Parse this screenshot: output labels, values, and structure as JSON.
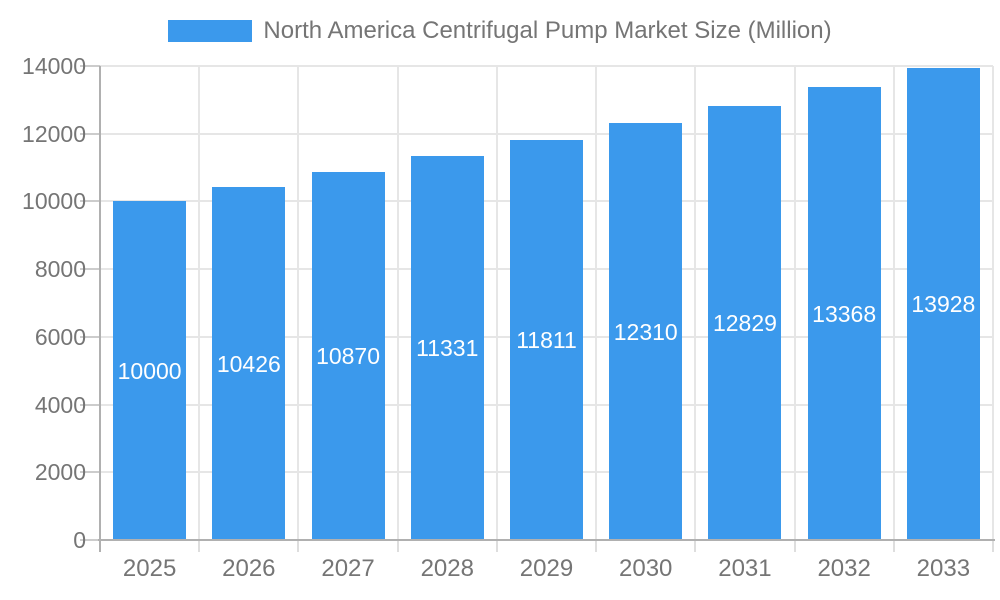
{
  "legend": {
    "label": "North America Centrifugal Pump Market Size (Million)"
  },
  "chart_data": {
    "type": "bar",
    "title": "North America Centrifugal Pump Market Size (Million)",
    "categories": [
      "2025",
      "2026",
      "2027",
      "2028",
      "2029",
      "2030",
      "2031",
      "2032",
      "2033"
    ],
    "values": [
      10000,
      10426,
      10870,
      11331,
      11811,
      12310,
      12829,
      13368,
      13928
    ],
    "xlabel": "",
    "ylabel": "",
    "ylim": [
      0,
      14000
    ],
    "yticks": [
      0,
      2000,
      4000,
      6000,
      8000,
      10000,
      12000,
      14000
    ],
    "grid": true,
    "legend_position": "top",
    "colors": {
      "bar": "#3b99ec",
      "bar_value_label": "#ffffff",
      "axis_text": "#757575",
      "gridline": "#e6e6e6",
      "axis_line": "#b0b0b0",
      "y_tick_mark": "#cccccc",
      "x_tick_mark": "#dedede"
    }
  }
}
